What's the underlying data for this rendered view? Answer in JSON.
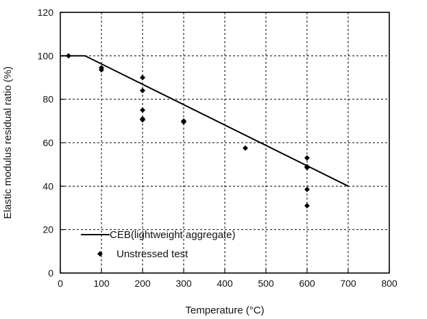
{
  "chart_data": {
    "type": "line",
    "title": "",
    "xlabel": "Temperature (°C)",
    "ylabel": "Elastic modulus residual ratio (%)",
    "xlim": [
      0,
      800
    ],
    "ylim": [
      0,
      120
    ],
    "x_ticks": [
      0,
      100,
      200,
      300,
      400,
      500,
      600,
      700,
      800
    ],
    "y_ticks": [
      0,
      20,
      40,
      60,
      80,
      100,
      120
    ],
    "grid": true,
    "legend_position": "bottom-left",
    "series": [
      {
        "name": "CEB(lightweight aggregate)",
        "type": "line",
        "x": [
          0,
          60,
          700
        ],
        "y": [
          100,
          100,
          40
        ]
      },
      {
        "name": "Unstressed test",
        "type": "scatter",
        "marker": "diamond",
        "x": [
          20,
          100,
          100,
          200,
          200,
          200,
          200,
          200,
          300,
          300,
          450,
          600,
          600,
          600,
          600,
          600
        ],
        "y": [
          100,
          94.5,
          93.5,
          90,
          84,
          75,
          71,
          70.5,
          70,
          69.5,
          57.5,
          53,
          49,
          48.5,
          38.5,
          31
        ]
      }
    ]
  }
}
